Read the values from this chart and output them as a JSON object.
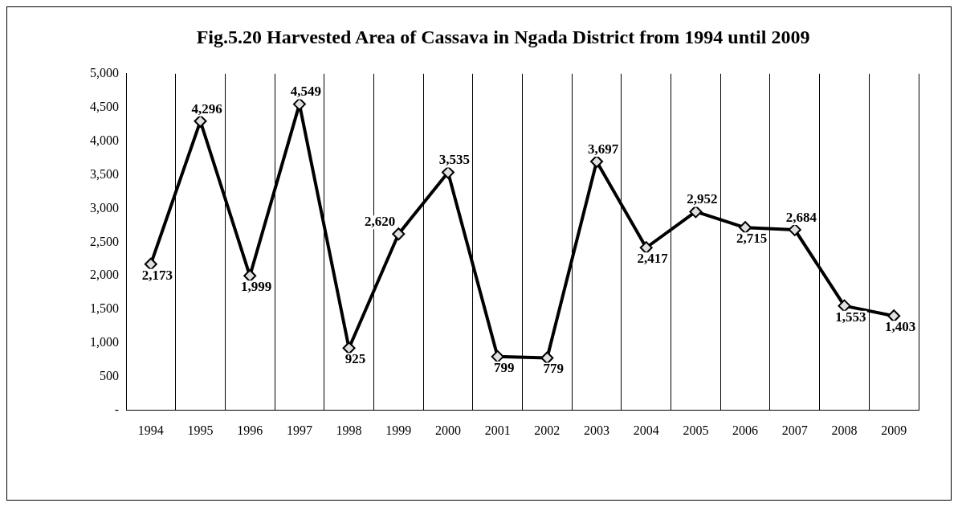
{
  "chart_data": {
    "type": "line",
    "title": "Fig.5.20 Harvested Area of Cassava in Ngada District from 1994 until 2009",
    "categories": [
      "1994",
      "1995",
      "1996",
      "1997",
      "1998",
      "1999",
      "2000",
      "2001",
      "2002",
      "2003",
      "2004",
      "2005",
      "2006",
      "2007",
      "2008",
      "2009"
    ],
    "series": [
      {
        "color": "#000000",
        "values": [
          2173,
          4296,
          1999,
          4549,
          925,
          2620,
          3535,
          799,
          779,
          3697,
          2417,
          2952,
          2715,
          2684,
          1553,
          1403
        ],
        "value_labels": [
          "2,173",
          "4,296",
          "1,999",
          "4,549",
          "925",
          "2,620",
          "3,535",
          "799",
          "779",
          "3,697",
          "2,417",
          "2,952",
          "2,715",
          "2,684",
          "1,553",
          "1,403"
        ]
      }
    ],
    "ylim": [
      0,
      5000
    ],
    "yticks": [
      {
        "value": 0,
        "label": "-"
      },
      {
        "value": 500,
        "label": "500"
      },
      {
        "value": 1000,
        "label": "1,000"
      },
      {
        "value": 1500,
        "label": "1,500"
      },
      {
        "value": 2000,
        "label": "2,000"
      },
      {
        "value": 2500,
        "label": "2,500"
      },
      {
        "value": 3000,
        "label": "3,000"
      },
      {
        "value": 3500,
        "label": "3,500"
      },
      {
        "value": 4000,
        "label": "4,000"
      },
      {
        "value": 4500,
        "label": "4,500"
      },
      {
        "value": 5000,
        "label": "5,000"
      }
    ],
    "grid": "x",
    "legend": false,
    "marker": "diamond",
    "line_style": "solid"
  }
}
